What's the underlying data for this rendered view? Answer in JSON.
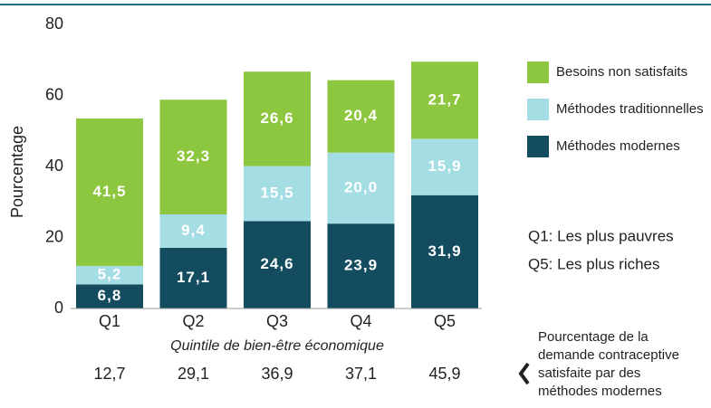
{
  "chart_data": {
    "type": "stacked_bar",
    "ylabel": "Pourcentage",
    "xlabel": "Quintile de bien-être économique",
    "categories": [
      "Q1",
      "Q2",
      "Q3",
      "Q4",
      "Q5"
    ],
    "ylim": [
      0,
      80
    ],
    "yticks": [
      0,
      20,
      40,
      60,
      80
    ],
    "series": [
      {
        "name": "Méthodes modernes",
        "color": "#134b5f",
        "values": [
          6.8,
          17.1,
          24.6,
          23.9,
          31.9
        ],
        "value_labels": [
          "6,8",
          "17,1",
          "24,6",
          "23,9",
          "31,9"
        ]
      },
      {
        "name": "Méthodes traditionnelles",
        "color": "#a5dde5",
        "values": [
          5.2,
          9.4,
          15.5,
          20.0,
          15.9
        ],
        "value_labels": [
          "5,2",
          "9,4",
          "15,5",
          "20,0",
          "15,9"
        ]
      },
      {
        "name": "Besoins non satisfaits",
        "color": "#8dc63f",
        "values": [
          41.5,
          32.3,
          26.6,
          20.4,
          21.7
        ],
        "value_labels": [
          "41,5",
          "32,3",
          "26,6",
          "20,4",
          "21,7"
        ]
      }
    ],
    "notes": [
      "Q1: Les plus pauvres",
      "Q5: Les plus riches"
    ],
    "demand_satisfied": [
      "12,7",
      "29,1",
      "36,9",
      "37,1",
      "45,9"
    ],
    "demand_note": [
      "Pourcentage de la",
      "demande contraceptive",
      "satisfaite par des",
      "méthodes modernes"
    ]
  }
}
